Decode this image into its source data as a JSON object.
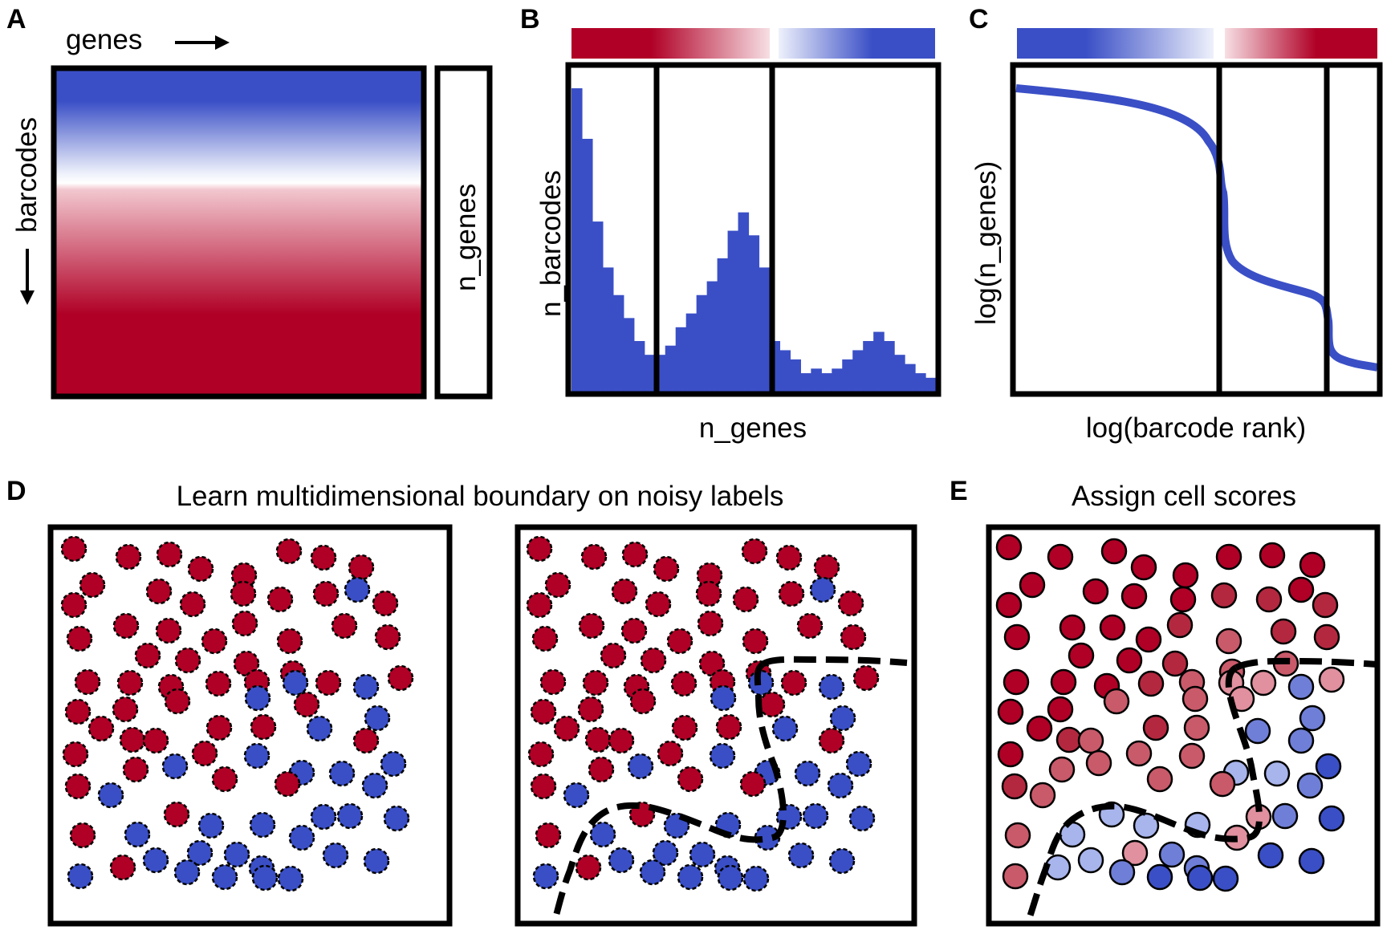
{
  "colors": {
    "red": "#b00026",
    "blue": "#3a4fc6",
    "light_red": "#f2c7cf",
    "light_blue": "#dde4f7",
    "mid_red": "#c95a6a",
    "pink": "#e0909e",
    "lavender": "#a8b4ec",
    "periwinkle": "#6f7fd8",
    "outline": "#000000"
  },
  "panel_a": {
    "letter": "A",
    "x_label": "genes",
    "y_label": "barcodes",
    "side_label": "n_genes"
  },
  "panel_b": {
    "letter": "B",
    "x_label": "n_genes",
    "y_label": "n_barcodes",
    "histogram_counts": [
      330,
      275,
      185,
      135,
      105,
      80,
      55,
      40,
      40,
      50,
      70,
      85,
      105,
      120,
      145,
      175,
      195,
      170,
      135,
      55,
      45,
      35,
      20,
      25,
      20,
      25,
      35,
      45,
      55,
      65,
      55,
      40,
      30,
      20,
      15
    ]
  },
  "panel_c": {
    "letter": "C",
    "x_label": "log(barcode rank)",
    "y_label": "log(n_genes)"
  },
  "panel_d": {
    "letter": "D",
    "title": "Learn multidimensional boundary on noisy labels"
  },
  "panel_e": {
    "letter": "E",
    "title": "Assign cell scores"
  }
}
